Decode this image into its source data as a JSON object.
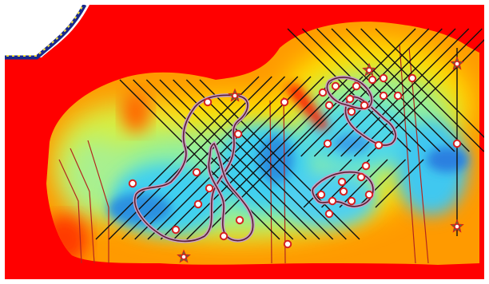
{
  "map": {
    "type": "heatmap-terrain-overlay",
    "colormap": "jet",
    "colors": {
      "background": "#ff0000",
      "frame": "#ffffff",
      "grid": "#111111",
      "vertical_lines": "#b3261e",
      "contour_outer": "#c8a0c8",
      "contour_inner": "#5a2030",
      "marker_fill": "#ffffff",
      "marker_ring": "#d62020",
      "star_marker": "#3a8c3a"
    },
    "icons": [
      "circle-marker",
      "star-marker"
    ],
    "legend": "none",
    "axes": "none"
  }
}
